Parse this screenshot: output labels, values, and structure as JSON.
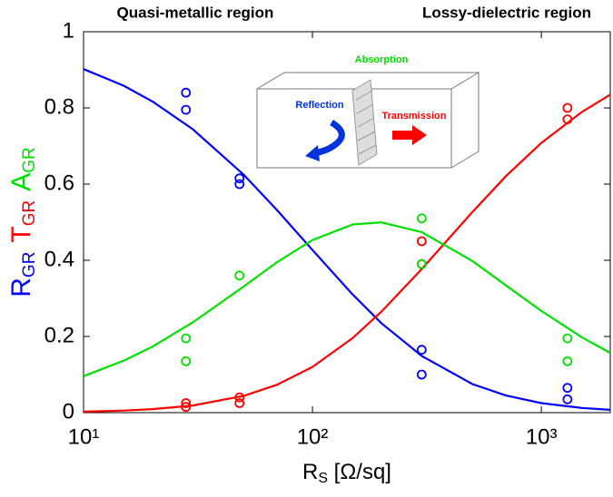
{
  "chart_data": {
    "type": "line",
    "annotations": [
      "Quasi-metallic region",
      "Lossy-dielectric region"
    ],
    "inset_labels": [
      "Absorption",
      "Reflection",
      "Transmission"
    ],
    "xlabel": {
      "text": "R",
      "sub": "S",
      "rest": " [Ω/sq]"
    },
    "ylabel": [
      {
        "text": "R",
        "sub": "GR",
        "color": "#0000ff"
      },
      {
        "text": "T",
        "sub": "GR",
        "color": "#ff0000"
      },
      {
        "text": "A",
        "sub": "GR",
        "color": "#00e000"
      }
    ],
    "log_x": true,
    "xlim": [
      10,
      2000
    ],
    "xticks": [
      {
        "value": 10,
        "label": "10¹"
      },
      {
        "value": 100,
        "label": "10²"
      },
      {
        "value": 1000,
        "label": "10³"
      }
    ],
    "ylim": [
      0,
      1
    ],
    "yticks": [
      0,
      0.2,
      0.4,
      0.6,
      0.8,
      1
    ],
    "x": [
      10,
      15,
      20,
      30,
      50,
      70,
      100,
      150,
      200,
      300,
      500,
      700,
      1000,
      1500,
      2000
    ],
    "series": [
      {
        "color": "#0000ff",
        "values": [
          0.902,
          0.858,
          0.817,
          0.744,
          0.625,
          0.532,
          0.427,
          0.31,
          0.235,
          0.149,
          0.075,
          0.045,
          0.025,
          0.0125,
          0.0074
        ]
      },
      {
        "color": "#ff0000",
        "values": [
          0.0025,
          0.0054,
          0.0092,
          0.0189,
          0.044,
          0.0733,
          0.1201,
          0.196,
          0.265,
          0.377,
          0.527,
          0.621,
          0.708,
          0.789,
          0.835
        ]
      },
      {
        "color": "#00e000",
        "values": [
          0.0957,
          0.1366,
          0.1734,
          0.2369,
          0.331,
          0.395,
          0.453,
          0.494,
          0.4996,
          0.474,
          0.398,
          0.334,
          0.267,
          0.198,
          0.157
        ]
      }
    ],
    "markers": [
      {
        "color": "#0000ff",
        "x": [
          28,
          28,
          48,
          48,
          300,
          300,
          1300,
          1300
        ],
        "values": [
          0.84,
          0.795,
          0.615,
          0.6,
          0.165,
          0.1,
          0.065,
          0.035
        ]
      },
      {
        "color": "#ff0000",
        "x": [
          28,
          28,
          48,
          48,
          300,
          300,
          1300,
          1300
        ],
        "values": [
          0.025,
          0.015,
          0.04,
          0.025,
          0.45,
          0.39,
          0.8,
          0.77
        ]
      },
      {
        "color": "#00e000",
        "x": [
          28,
          28,
          48,
          300,
          300,
          1300,
          1300
        ],
        "values": [
          0.195,
          0.135,
          0.36,
          0.51,
          0.39,
          0.195,
          0.135
        ]
      }
    ]
  }
}
